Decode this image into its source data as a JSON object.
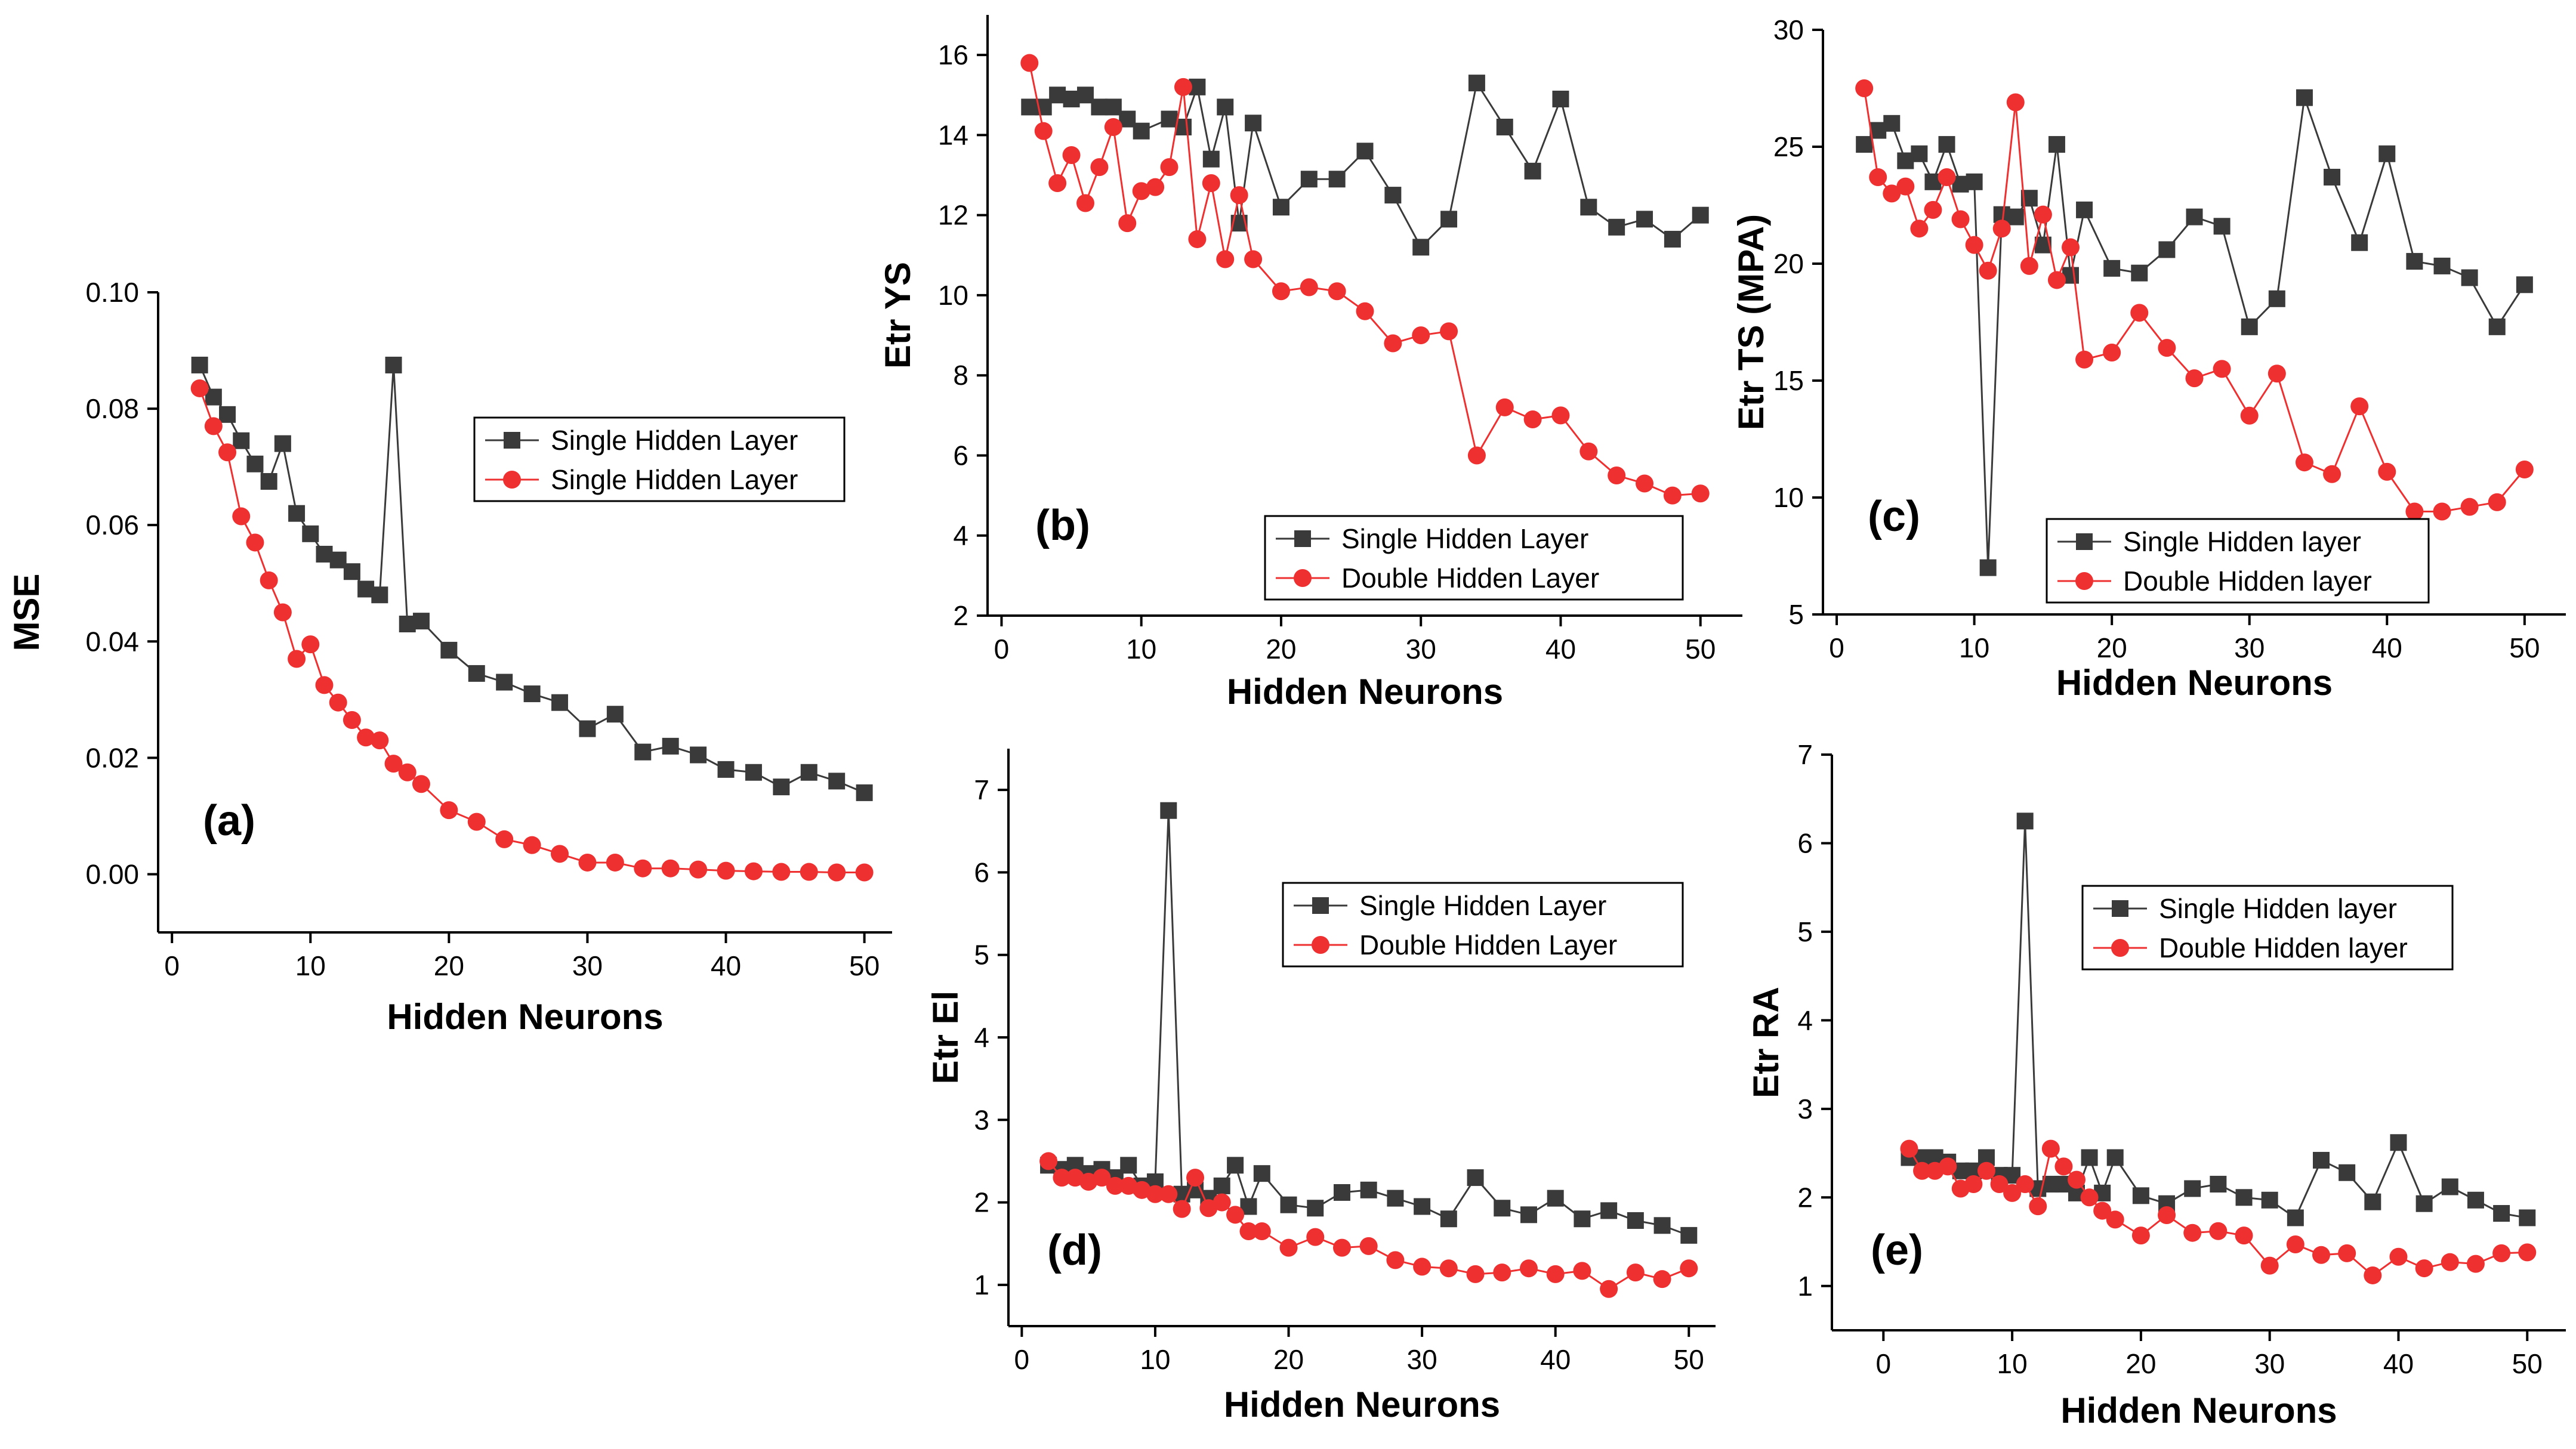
{
  "colors": {
    "series_black": "#3a3a3a",
    "series_red": "#ee3030",
    "axis": "#000000"
  },
  "chart_data": [
    {
      "id": "a",
      "type": "line",
      "panel_label": "(a)",
      "xlabel": "Hidden Neurons",
      "ylabel": "MSE",
      "xlim": [
        -1,
        52
      ],
      "ylim": [
        -0.01,
        0.1
      ],
      "xticks": [
        0,
        10,
        20,
        30,
        40,
        50
      ],
      "yticks": [
        0.0,
        0.02,
        0.04,
        0.06,
        0.08,
        0.1
      ],
      "ytick_labels": [
        "0.00",
        "0.02",
        "0.04",
        "0.06",
        "0.08",
        "0.10"
      ],
      "legend_position": "top-right",
      "series": [
        {
          "name": "Single Hidden Layer",
          "marker": "square",
          "color": "#3a3a3a",
          "x": [
            2,
            3,
            4,
            5,
            6,
            7,
            8,
            9,
            10,
            11,
            12,
            13,
            14,
            15,
            16,
            17,
            18,
            20,
            22,
            24,
            26,
            28,
            30,
            32,
            34,
            36,
            38,
            40,
            42,
            44,
            46,
            48,
            50
          ],
          "y": [
            0.0875,
            0.082,
            0.079,
            0.0745,
            0.0705,
            0.0675,
            0.074,
            0.062,
            0.0585,
            0.055,
            0.054,
            0.052,
            0.049,
            0.048,
            0.0875,
            0.043,
            0.0435,
            0.0385,
            0.0345,
            0.033,
            0.031,
            0.0295,
            0.025,
            0.0275,
            0.021,
            0.022,
            0.0205,
            0.018,
            0.0175,
            0.015,
            0.0175,
            0.016,
            0.014
          ]
        },
        {
          "name": "Single Hidden Layer",
          "marker": "circle",
          "color": "#ee3030",
          "x": [
            2,
            3,
            4,
            5,
            6,
            7,
            8,
            9,
            10,
            11,
            12,
            13,
            14,
            15,
            16,
            17,
            18,
            20,
            22,
            24,
            26,
            28,
            30,
            32,
            34,
            36,
            38,
            40,
            42,
            44,
            46,
            48,
            50
          ],
          "y": [
            0.0835,
            0.077,
            0.0725,
            0.0615,
            0.057,
            0.0505,
            0.045,
            0.037,
            0.0395,
            0.0325,
            0.0295,
            0.0265,
            0.0235,
            0.023,
            0.019,
            0.0175,
            0.0155,
            0.011,
            0.009,
            0.006,
            0.005,
            0.0035,
            0.002,
            0.002,
            0.001,
            0.001,
            0.0008,
            0.0006,
            0.0005,
            0.0004,
            0.0004,
            0.0003,
            0.0003
          ]
        }
      ]
    },
    {
      "id": "b",
      "type": "line",
      "panel_label": "(b)",
      "xlabel": "Hidden Neurons",
      "ylabel": "Etr YS",
      "xlim": [
        -1,
        53
      ],
      "ylim": [
        2,
        17
      ],
      "xticks": [
        0,
        10,
        20,
        30,
        40,
        50
      ],
      "yticks": [
        2,
        4,
        6,
        8,
        10,
        12,
        14,
        16
      ],
      "ytick_labels": [
        "2",
        "4",
        "6",
        "8",
        "10",
        "12",
        "14",
        "16"
      ],
      "legend_position": "bottom-right",
      "series": [
        {
          "name": "Single Hidden Layer",
          "marker": "square",
          "color": "#3a3a3a",
          "x": [
            2,
            3,
            4,
            5,
            6,
            7,
            8,
            9,
            10,
            12,
            13,
            14,
            15,
            16,
            17,
            18,
            20,
            22,
            24,
            26,
            28,
            30,
            32,
            34,
            36,
            38,
            40,
            42,
            44,
            46,
            48,
            50
          ],
          "y": [
            14.7,
            14.7,
            15.0,
            14.9,
            15.0,
            14.7,
            14.7,
            14.4,
            14.1,
            14.4,
            14.2,
            15.2,
            13.4,
            14.7,
            11.8,
            14.3,
            12.2,
            12.9,
            12.9,
            13.6,
            12.5,
            11.2,
            11.9,
            15.3,
            14.2,
            13.1,
            14.9,
            12.2,
            11.7,
            11.9,
            11.4,
            12.0
          ]
        },
        {
          "name": "Double Hidden Layer",
          "marker": "circle",
          "color": "#ee3030",
          "x": [
            2,
            3,
            4,
            5,
            6,
            7,
            8,
            9,
            10,
            11,
            12,
            13,
            14,
            15,
            16,
            17,
            18,
            20,
            22,
            24,
            26,
            28,
            30,
            32,
            34,
            36,
            38,
            40,
            42,
            44,
            46,
            48,
            50
          ],
          "y": [
            15.8,
            14.1,
            12.8,
            13.5,
            12.3,
            13.2,
            14.2,
            11.8,
            12.6,
            12.7,
            13.2,
            15.2,
            11.4,
            12.8,
            10.9,
            12.5,
            10.9,
            10.1,
            10.2,
            10.1,
            9.6,
            8.8,
            9.0,
            9.1,
            6.0,
            7.2,
            6.9,
            7.0,
            6.1,
            5.5,
            5.3,
            5.0,
            5.05
          ]
        }
      ]
    },
    {
      "id": "c",
      "type": "line",
      "panel_label": "(c)",
      "xlabel": "Hidden Neurons",
      "ylabel": "Etr TS (MPA)",
      "xlim": [
        -1,
        53
      ],
      "ylim": [
        5,
        30
      ],
      "xticks": [
        0,
        10,
        20,
        30,
        40,
        50
      ],
      "yticks": [
        5,
        10,
        15,
        20,
        25,
        30
      ],
      "ytick_labels": [
        "5",
        "10",
        "15",
        "20",
        "25",
        "30"
      ],
      "legend_position": "bottom-right",
      "series": [
        {
          "name": "Single Hidden layer",
          "marker": "square",
          "color": "#3a3a3a",
          "x": [
            2,
            3,
            4,
            5,
            6,
            7,
            8,
            9,
            10,
            11,
            12,
            13,
            14,
            15,
            16,
            17,
            18,
            20,
            22,
            24,
            26,
            28,
            30,
            32,
            34,
            36,
            38,
            40,
            42,
            44,
            46,
            48,
            50
          ],
          "y": [
            25.1,
            25.7,
            26.0,
            24.4,
            24.7,
            23.5,
            25.1,
            23.4,
            23.5,
            7.0,
            22.1,
            22.0,
            22.8,
            20.8,
            25.1,
            19.5,
            22.3,
            19.8,
            19.6,
            20.6,
            22.0,
            21.6,
            17.3,
            18.5,
            27.1,
            23.7,
            20.9,
            24.7,
            20.1,
            19.9,
            19.4,
            17.3,
            19.1
          ]
        },
        {
          "name": "Double Hidden layer",
          "marker": "circle",
          "color": "#ee3030",
          "x": [
            2,
            3,
            4,
            5,
            6,
            7,
            8,
            9,
            10,
            11,
            12,
            13,
            14,
            15,
            16,
            17,
            18,
            20,
            22,
            24,
            26,
            28,
            30,
            32,
            34,
            36,
            38,
            40,
            42,
            44,
            46,
            48,
            50
          ],
          "y": [
            27.5,
            23.7,
            23.0,
            23.3,
            21.5,
            22.3,
            23.7,
            21.9,
            20.8,
            19.7,
            21.5,
            26.9,
            19.9,
            22.1,
            19.3,
            20.7,
            15.9,
            16.2,
            17.9,
            16.4,
            15.1,
            15.5,
            13.5,
            15.3,
            11.5,
            11.0,
            13.9,
            11.1,
            9.4,
            9.4,
            9.6,
            9.8,
            11.2
          ]
        }
      ]
    },
    {
      "id": "d",
      "type": "line",
      "panel_label": "(d)",
      "xlabel": "Hidden Neurons",
      "ylabel": "Etr El",
      "xlim": [
        -1,
        52
      ],
      "ylim": [
        0.5,
        7.5
      ],
      "xticks": [
        0,
        10,
        20,
        30,
        40,
        50
      ],
      "yticks": [
        1,
        2,
        3,
        4,
        5,
        6,
        7
      ],
      "ytick_labels": [
        "1",
        "2",
        "3",
        "4",
        "5",
        "6",
        "7"
      ],
      "legend_position": "top-right",
      "series": [
        {
          "name": "Single Hidden Layer",
          "marker": "square",
          "color": "#3a3a3a",
          "x": [
            2,
            3,
            4,
            5,
            6,
            7,
            8,
            9,
            10,
            11,
            12,
            13,
            14,
            15,
            16,
            17,
            18,
            20,
            22,
            24,
            26,
            28,
            30,
            32,
            34,
            36,
            38,
            40,
            42,
            44,
            46,
            48,
            50
          ],
          "y": [
            2.45,
            2.4,
            2.45,
            2.35,
            2.4,
            2.3,
            2.45,
            2.2,
            2.25,
            6.75,
            2.1,
            2.15,
            2.05,
            2.2,
            2.45,
            1.95,
            2.35,
            1.97,
            1.93,
            2.12,
            2.15,
            2.05,
            1.95,
            1.8,
            2.3,
            1.93,
            1.85,
            2.05,
            1.8,
            1.9,
            1.78,
            1.72,
            1.6
          ]
        },
        {
          "name": "Double Hidden Layer",
          "marker": "circle",
          "color": "#ee3030",
          "x": [
            2,
            3,
            4,
            5,
            6,
            7,
            8,
            9,
            10,
            11,
            12,
            13,
            14,
            15,
            16,
            17,
            18,
            20,
            22,
            24,
            26,
            28,
            30,
            32,
            34,
            36,
            38,
            40,
            42,
            44,
            46,
            48,
            50
          ],
          "y": [
            2.5,
            2.3,
            2.3,
            2.25,
            2.3,
            2.2,
            2.2,
            2.15,
            2.1,
            2.1,
            1.92,
            2.3,
            1.93,
            2.0,
            1.85,
            1.65,
            1.65,
            1.45,
            1.58,
            1.45,
            1.47,
            1.3,
            1.22,
            1.2,
            1.13,
            1.15,
            1.2,
            1.13,
            1.17,
            0.95,
            1.15,
            1.07,
            1.2
          ]
        }
      ]
    },
    {
      "id": "e",
      "type": "line",
      "panel_label": "(e)",
      "xlabel": "Hidden Neurons",
      "ylabel": "Etr RA",
      "xlim": [
        -4,
        53
      ],
      "ylim": [
        0.5,
        7.0
      ],
      "xticks": [
        0,
        10,
        20,
        30,
        40,
        50
      ],
      "yticks": [
        1,
        2,
        3,
        4,
        5,
        6,
        7
      ],
      "ytick_labels": [
        "1",
        "2",
        "3",
        "4",
        "5",
        "6",
        "7"
      ],
      "legend_position": "top-right",
      "series": [
        {
          "name": "Single Hidden layer",
          "marker": "square",
          "color": "#3a3a3a",
          "x": [
            2,
            3,
            4,
            5,
            6,
            7,
            8,
            9,
            10,
            11,
            12,
            13,
            14,
            15,
            16,
            17,
            18,
            20,
            22,
            24,
            26,
            28,
            30,
            32,
            34,
            36,
            38,
            40,
            42,
            44,
            46,
            48,
            50
          ],
          "y": [
            2.45,
            2.45,
            2.45,
            2.4,
            2.3,
            2.3,
            2.45,
            2.25,
            2.25,
            6.25,
            2.1,
            2.15,
            2.15,
            2.05,
            2.45,
            2.05,
            2.45,
            2.02,
            1.93,
            2.1,
            2.15,
            2.0,
            1.97,
            1.77,
            2.42,
            2.28,
            1.95,
            2.62,
            1.93,
            2.12,
            1.97,
            1.82,
            1.77
          ]
        },
        {
          "name": "Double Hidden layer",
          "marker": "circle",
          "color": "#ee3030",
          "x": [
            2,
            3,
            4,
            5,
            6,
            7,
            8,
            9,
            10,
            11,
            12,
            13,
            14,
            15,
            16,
            17,
            18,
            20,
            22,
            24,
            26,
            28,
            30,
            32,
            34,
            36,
            38,
            40,
            42,
            44,
            46,
            48,
            50
          ],
          "y": [
            2.55,
            2.3,
            2.3,
            2.35,
            2.1,
            2.15,
            2.3,
            2.15,
            2.05,
            2.15,
            1.9,
            2.55,
            2.35,
            2.2,
            2.0,
            1.85,
            1.75,
            1.57,
            1.8,
            1.6,
            1.62,
            1.57,
            1.23,
            1.47,
            1.35,
            1.37,
            1.12,
            1.33,
            1.2,
            1.27,
            1.25,
            1.37,
            1.38
          ]
        }
      ]
    }
  ]
}
